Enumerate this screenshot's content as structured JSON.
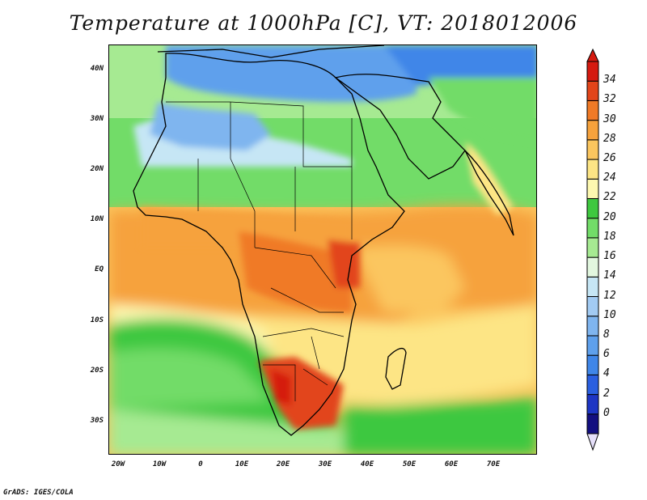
{
  "title": "Temperature at 1000hPa [C], VT: 2018012006",
  "credit": "GrADS: IGES/COLA",
  "map": {
    "variable": "Temperature at 1000hPa",
    "units": "C",
    "valid_time": "2018012006",
    "lat_labels": [
      "40N",
      "30N",
      "20N",
      "10N",
      "EQ",
      "10S",
      "20S",
      "30S"
    ],
    "lon_labels": [
      "20W",
      "10W",
      "0",
      "10E",
      "20E",
      "30E",
      "40E",
      "50E",
      "60E",
      "70E"
    ]
  },
  "colorbar": {
    "levels": [
      "0",
      "2",
      "4",
      "6",
      "8",
      "10",
      "12",
      "14",
      "16",
      "18",
      "20",
      "22",
      "24",
      "26",
      "28",
      "30",
      "32",
      "34"
    ],
    "colors": [
      "#130f80",
      "#1d35c4",
      "#2a5fe0",
      "#3f86e8",
      "#5ea0ec",
      "#7fb5ef",
      "#a2cbf3",
      "#c6e6f5",
      "#e2f7df",
      "#a6ea92",
      "#72dc68",
      "#3ec83f",
      "#fdf8b0",
      "#fde585",
      "#fbc65e",
      "#f6a23c",
      "#f07a26",
      "#e2451a",
      "#d51a10"
    ],
    "under_color": "#e6e0fa",
    "over_color": "#d51a10"
  },
  "colors": {
    "ocean_south_green": "#3ec83f",
    "ocean_pale": "#fdf8b0",
    "land_hot": "#e2451a",
    "land_warm": "#f6a23c",
    "land_cool": "#7fb5ef",
    "coast": "#000000"
  }
}
